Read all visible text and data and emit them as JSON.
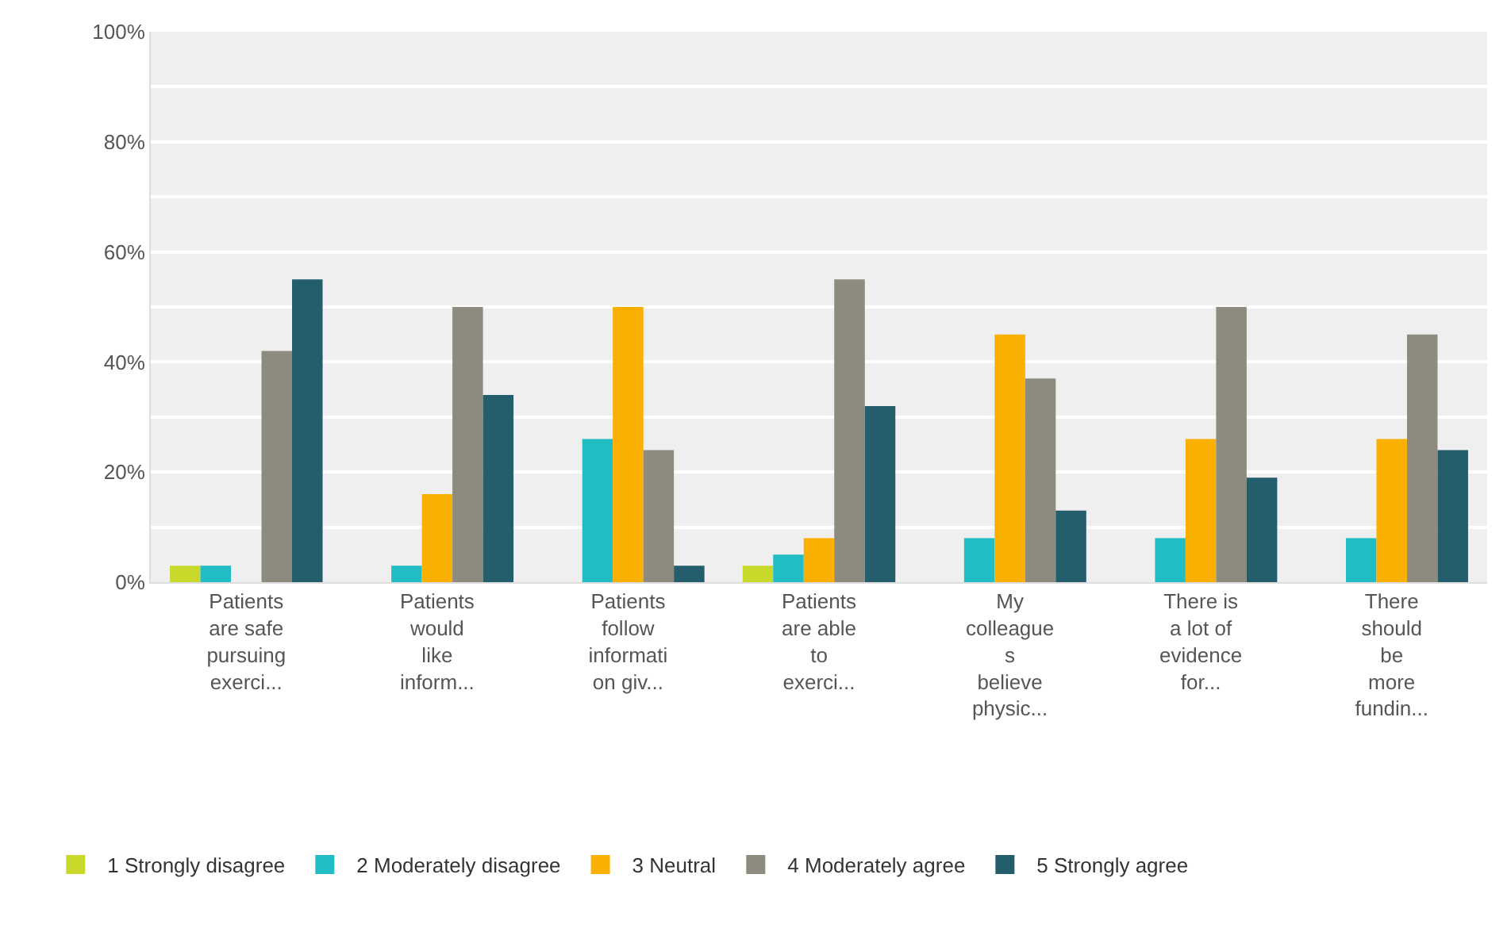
{
  "chart_data": {
    "type": "bar",
    "categories": [
      "Patients\nare safe\npursuing\nexerci...",
      "Patients\nwould\nlike\ninform...",
      "Patients\nfollow\ninformati\non giv...",
      "Patients\nare able\nto\nexerci...",
      "My\ncolleague\ns\nbelieve\nphysic...",
      "There is\na lot of\nevidence\nfor...",
      "There\nshould\nbe\nmore\nfundin..."
    ],
    "series": [
      {
        "name": "1 Strongly disagree",
        "color": "#c8d92b",
        "values": [
          3,
          0,
          0,
          3,
          0,
          0,
          0
        ]
      },
      {
        "name": "2 Moderately disagree",
        "color": "#22bcc4",
        "values": [
          3,
          3,
          26,
          5,
          8,
          8,
          8
        ]
      },
      {
        "name": "3 Neutral",
        "color": "#f9b000",
        "values": [
          0,
          16,
          50,
          8,
          45,
          26,
          26
        ]
      },
      {
        "name": "4 Moderately agree",
        "color": "#8c8b7e",
        "values": [
          42,
          50,
          24,
          55,
          37,
          50,
          45
        ]
      },
      {
        "name": "5 Strongly agree",
        "color": "#245d6c",
        "values": [
          55,
          34,
          3,
          32,
          13,
          19,
          24
        ]
      }
    ],
    "ylim": [
      0,
      100
    ],
    "yticks": [
      {
        "value": 0,
        "label": "0%"
      },
      {
        "value": 10,
        "label": null
      },
      {
        "value": 20,
        "label": "20%"
      },
      {
        "value": 30,
        "label": null
      },
      {
        "value": 40,
        "label": "40%"
      },
      {
        "value": 50,
        "label": null
      },
      {
        "value": 60,
        "label": "60%"
      },
      {
        "value": 70,
        "label": null
      },
      {
        "value": 80,
        "label": "80%"
      },
      {
        "value": 90,
        "label": null
      },
      {
        "value": 100,
        "label": "100%"
      }
    ],
    "grid": "y",
    "legend": "bottom left"
  }
}
